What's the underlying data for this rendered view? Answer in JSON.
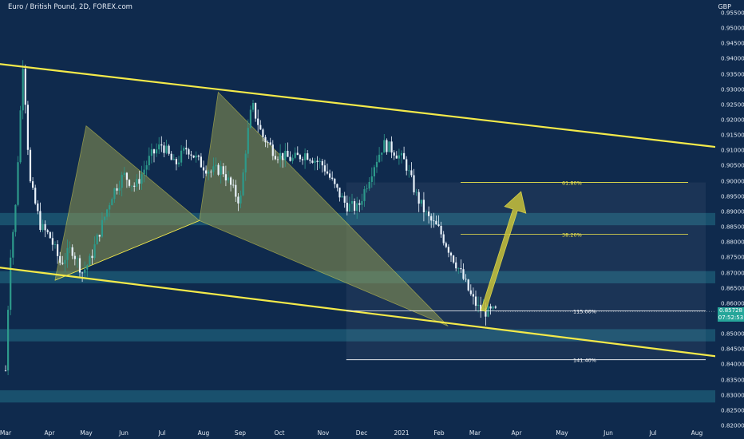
{
  "header": {
    "symbol": "Euro / British Pound, 2D, FOREX.com",
    "currency": "GBP"
  },
  "price_badge": {
    "price": "0.85728",
    "countdown": "07:52:53"
  },
  "colors": {
    "background": "#0f2a4d",
    "channel": "#f4ea4a",
    "zone": "#1e5e78",
    "pattern_fill": "#8f9852",
    "up_candle": "#2d9a8b",
    "down_candle": "#e9f2fb"
  },
  "chart_data": {
    "type": "candlestick",
    "title": "Euro / British Pound, 2D, FOREX.com",
    "ylabel": "GBP",
    "ylim": [
      0.82,
      0.955
    ],
    "yticks": [
      "0.95500",
      "0.95000",
      "0.94500",
      "0.94000",
      "0.93500",
      "0.93000",
      "0.92500",
      "0.92000",
      "0.91500",
      "0.91000",
      "0.90500",
      "0.90000",
      "0.89500",
      "0.89000",
      "0.88500",
      "0.88000",
      "0.87500",
      "0.87000",
      "0.86500",
      "0.86000",
      "0.85500",
      "0.85000",
      "0.84500",
      "0.84000",
      "0.83500",
      "0.83000",
      "0.82500",
      "0.82000"
    ],
    "xticks": [
      "Mar",
      "Apr",
      "May",
      "Jun",
      "Jul",
      "Aug",
      "Sep",
      "Oct",
      "Nov",
      "Dec",
      "2021",
      "Feb",
      "Mar",
      "Apr",
      "May",
      "Jun",
      "Jul",
      "Aug"
    ],
    "xtick_months": [
      0,
      1,
      2,
      3,
      4,
      5,
      6,
      7,
      8,
      9,
      10,
      11,
      12,
      13,
      14,
      15,
      16,
      17
    ],
    "series_path": [
      [
        0,
        0.838
      ],
      [
        0.1,
        0.875
      ],
      [
        0.22,
        0.89
      ],
      [
        0.4,
        0.94
      ],
      [
        0.55,
        0.9
      ],
      [
        0.8,
        0.885
      ],
      [
        1.0,
        0.882
      ],
      [
        1.3,
        0.873
      ],
      [
        1.6,
        0.878
      ],
      [
        1.9,
        0.87
      ],
      [
        2.1,
        0.874
      ],
      [
        2.4,
        0.885
      ],
      [
        2.7,
        0.896
      ],
      [
        3.0,
        0.902
      ],
      [
        3.3,
        0.898
      ],
      [
        3.7,
        0.908
      ],
      [
        4.0,
        0.912
      ],
      [
        4.3,
        0.905
      ],
      [
        4.6,
        0.911
      ],
      [
        4.9,
        0.906
      ],
      [
        5.2,
        0.903
      ],
      [
        5.5,
        0.904
      ],
      [
        5.8,
        0.897
      ],
      [
        6.0,
        0.893
      ],
      [
        6.15,
        0.912
      ],
      [
        6.3,
        0.925
      ],
      [
        6.55,
        0.915
      ],
      [
        6.9,
        0.909
      ],
      [
        7.3,
        0.907
      ],
      [
        7.6,
        0.909
      ],
      [
        8.0,
        0.905
      ],
      [
        8.3,
        0.898
      ],
      [
        8.6,
        0.892
      ],
      [
        8.9,
        0.891
      ],
      [
        9.1,
        0.898
      ],
      [
        9.3,
        0.905
      ],
      [
        9.55,
        0.912
      ],
      [
        9.8,
        0.91
      ],
      [
        10.1,
        0.906
      ],
      [
        10.4,
        0.895
      ],
      [
        10.7,
        0.888
      ],
      [
        11.0,
        0.884
      ],
      [
        11.3,
        0.877
      ],
      [
        11.6,
        0.87
      ],
      [
        11.9,
        0.862
      ],
      [
        12.1,
        0.858
      ],
      [
        12.3,
        0.857
      ],
      [
        12.5,
        0.8573
      ]
    ],
    "channel_lines": [
      {
        "name": "upper",
        "points": [
          [
            -0.9,
            0.9395
          ],
          [
            17.8,
            0.9105
          ]
        ]
      },
      {
        "name": "lower",
        "points": [
          [
            -0.9,
            0.873
          ],
          [
            17.8,
            0.842
          ]
        ]
      }
    ],
    "zones": [
      {
        "from": 0.8855,
        "to": 0.8895
      },
      {
        "from": 0.8665,
        "to": 0.8705
      },
      {
        "from": 0.8475,
        "to": 0.8515
      },
      {
        "from": 0.8275,
        "to": 0.8315
      }
    ],
    "pattern": {
      "X": [
        1.15,
        0.8675
      ],
      "A": [
        2.0,
        0.918
      ],
      "B": [
        4.9,
        0.887
      ],
      "C": [
        5.4,
        0.929
      ],
      "D": [
        11.25,
        0.8525
      ],
      "extra": [
        [
          8.8,
          0.888
        ]
      ]
    },
    "fib_box": {
      "x_start": 8.6,
      "x_end": 17.2,
      "price_top": 0.8995,
      "price_bottom": 0.8415
    },
    "fib_levels": [
      {
        "label": "61.80%",
        "price": 0.8995,
        "x_start": 11.6,
        "x_end": 16.8
      },
      {
        "label": "38.20%",
        "price": 0.8825,
        "x_start": 11.6,
        "x_end": 16.8
      },
      {
        "label": "115.00%",
        "price": 0.8575,
        "x_start": 8.6,
        "x_end": 17.2
      },
      {
        "label": "141.40%",
        "price": 0.8415,
        "x_start": 8.6,
        "x_end": 17.2
      }
    ],
    "projection_arrow": {
      "from": [
        12.2,
        0.8575
      ],
      "to": [
        13.1,
        0.8965
      ]
    },
    "last_price": 0.85728
  }
}
